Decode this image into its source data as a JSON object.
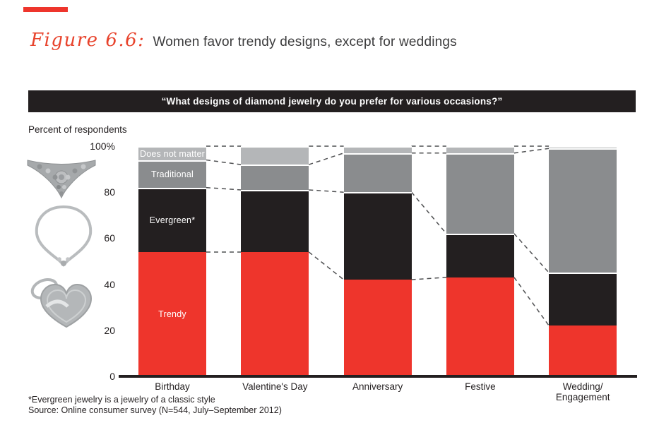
{
  "accent_bar": {
    "color": "#ee352c"
  },
  "header": {
    "figure_label": "Figure 6.6:",
    "title": "Women favor trendy designs, except for weddings"
  },
  "banner": {
    "question": "“What designs of diamond jewelry do you prefer for various occasions?”",
    "bg_color": "#231f20",
    "text_color": "#ffffff"
  },
  "axis_caption": "Percent of respondents",
  "chart_data": {
    "type": "bar",
    "stacked": true,
    "title": "Women favor trendy designs, except for weddings",
    "xlabel": "",
    "ylabel": "Percent of respondents",
    "ylim": [
      0,
      100
    ],
    "grid": false,
    "legend_position": "inside-first-bar",
    "connector_style": "dashed-lines-between-bars",
    "categories": [
      "Birthday",
      "Valentine's Day",
      "Anniversary",
      "Festive",
      "Wedding/Engagement"
    ],
    "series": [
      {
        "name": "Trendy",
        "color": "#ee352c",
        "values": [
          54,
          54,
          42,
          43,
          22
        ]
      },
      {
        "name": "Evergreen*",
        "color": "#231f20",
        "values": [
          28,
          27,
          38,
          19,
          23
        ]
      },
      {
        "name": "Traditional",
        "color": "#8a8c8e",
        "values": [
          12,
          11,
          17,
          35,
          54
        ]
      },
      {
        "name": "Does not matter",
        "color": "#b4b6b8",
        "values": [
          6,
          8,
          3,
          3,
          1
        ]
      }
    ],
    "yticks": [
      {
        "value": 0,
        "label": "0"
      },
      {
        "value": 20,
        "label": "20"
      },
      {
        "value": 40,
        "label": "40"
      },
      {
        "value": 60,
        "label": "60"
      },
      {
        "value": 80,
        "label": "80"
      },
      {
        "value": 100,
        "label": "100%"
      }
    ]
  },
  "images": [
    {
      "name": "diamond-collar-necklace-photo"
    },
    {
      "name": "diamond-pendant-necklace-photo"
    },
    {
      "name": "diamond-heart-pendant-photo"
    }
  ],
  "footnotes": {
    "line1": "*Evergreen jewelry is a jewelry of a classic style",
    "line2": "Source: Online consumer survey (N=544, July–September 2012)"
  }
}
